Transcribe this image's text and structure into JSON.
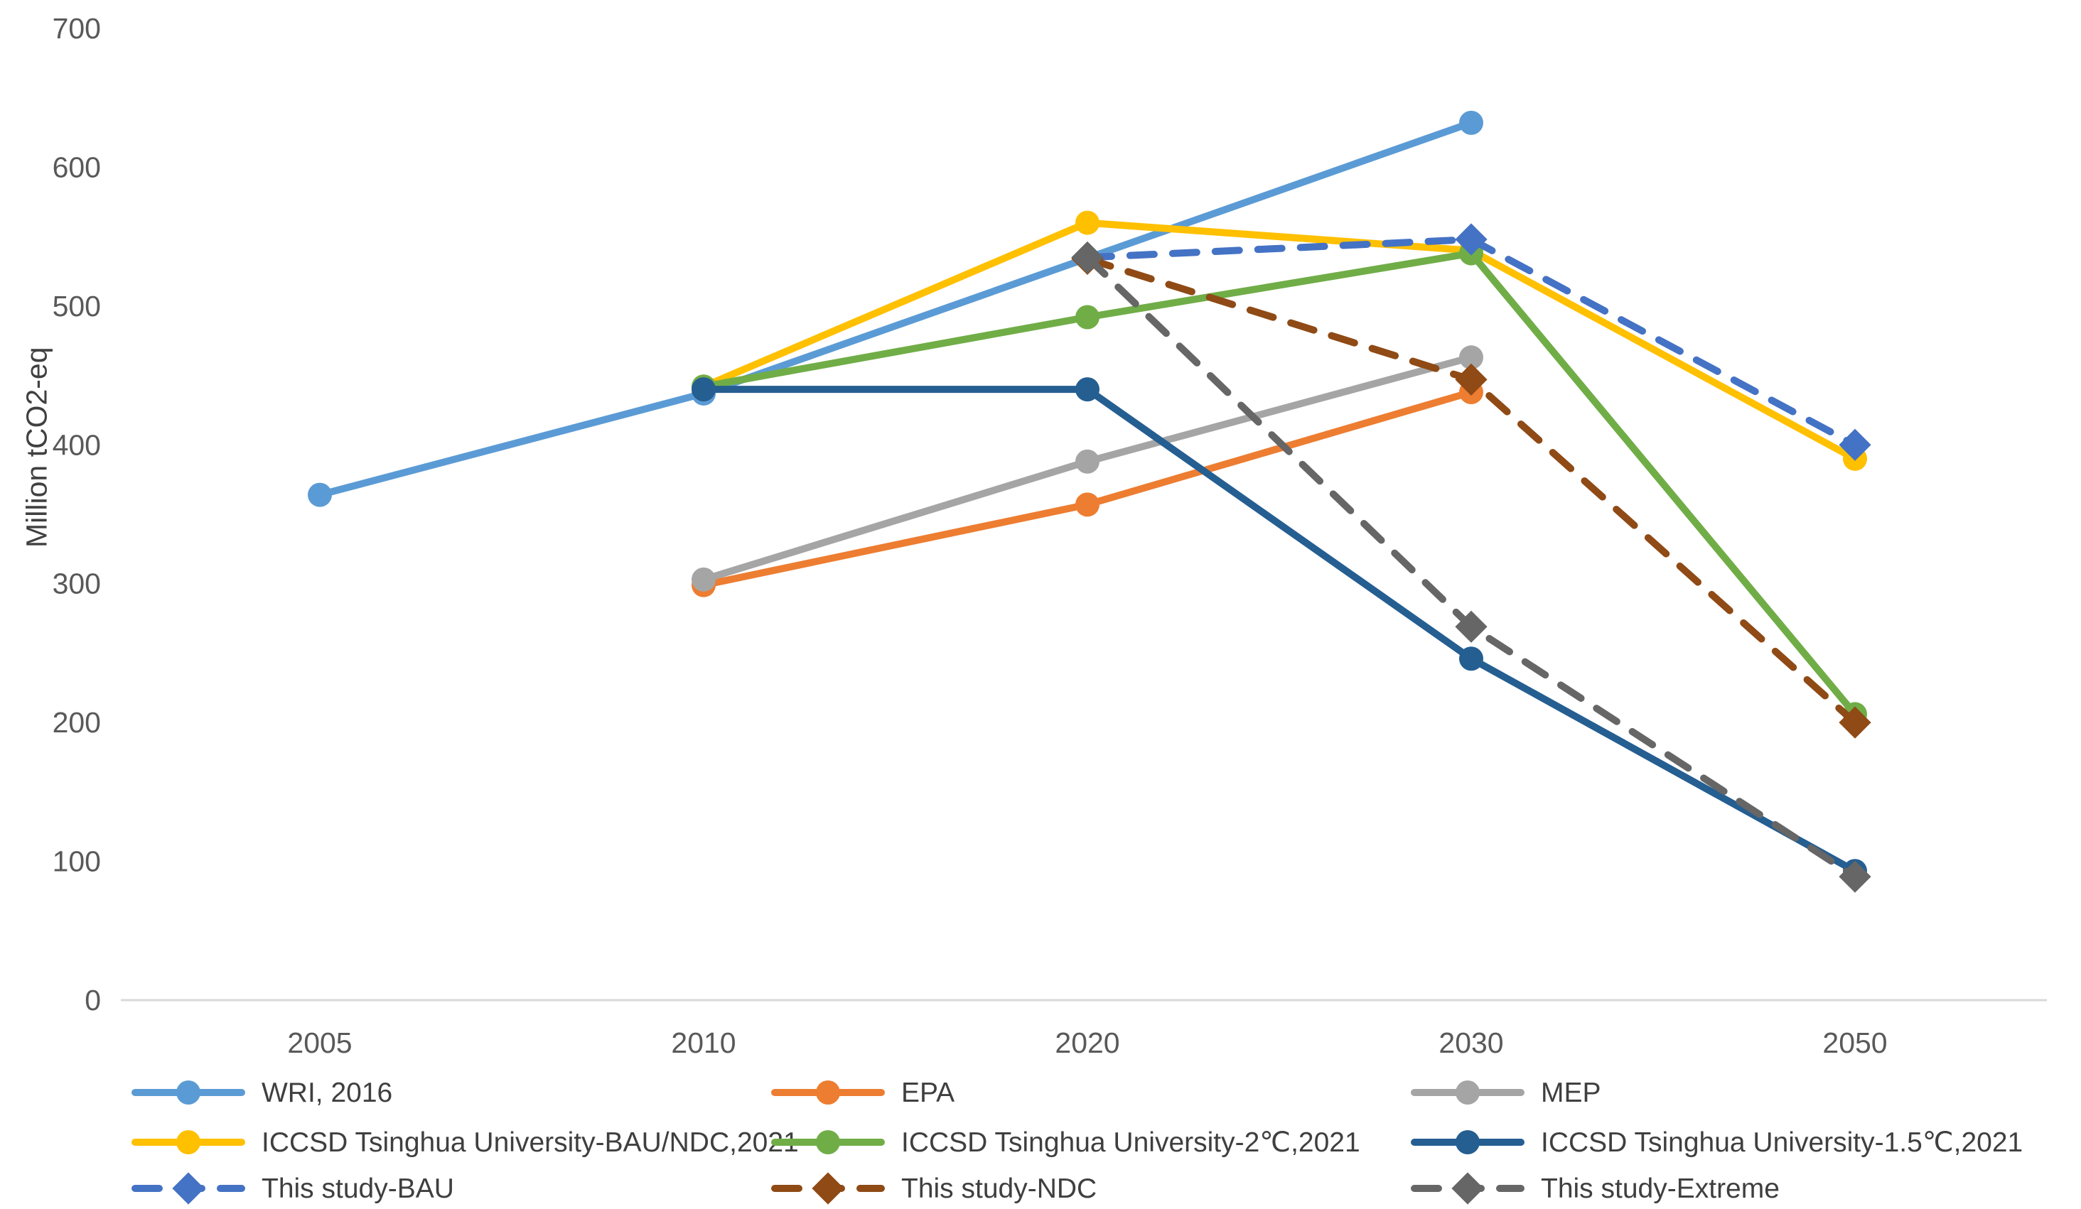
{
  "chart_data": {
    "type": "line",
    "title": "",
    "xlabel": "",
    "ylabel": "Million tCO2-eq",
    "categories": [
      "2005",
      "2010",
      "2020",
      "2030",
      "2050"
    ],
    "ylim": [
      0,
      700
    ],
    "yticks": [
      0,
      100,
      200,
      300,
      400,
      500,
      600,
      700
    ],
    "grid": false,
    "legend_position": "bottom",
    "legend_columns": 3,
    "axis_color": "#D9D9D9",
    "tick_label_color": "#595959",
    "legend_text_color": "#3F3F3F",
    "series": [
      {
        "name": "WRI, 2016",
        "color": "#5B9BD5",
        "style": "solid",
        "marker": "circle",
        "points": [
          {
            "x": "2005",
            "y": 364
          },
          {
            "x": "2010",
            "y": 437
          },
          {
            "x": "2030",
            "y": 632
          }
        ]
      },
      {
        "name": "EPA",
        "color": "#ED7D31",
        "style": "solid",
        "marker": "circle",
        "points": [
          {
            "x": "2010",
            "y": 299
          },
          {
            "x": "2020",
            "y": 357
          },
          {
            "x": "2030",
            "y": 438
          }
        ]
      },
      {
        "name": "MEP",
        "color": "#A5A5A5",
        "style": "solid",
        "marker": "circle",
        "points": [
          {
            "x": "2010",
            "y": 303
          },
          {
            "x": "2020",
            "y": 388
          },
          {
            "x": "2030",
            "y": 463
          }
        ]
      },
      {
        "name": "ICCSD Tsinghua University-BAU/NDC,2021",
        "color": "#FFC000",
        "style": "solid",
        "marker": "circle",
        "points": [
          {
            "x": "2010",
            "y": 442
          },
          {
            "x": "2020",
            "y": 560
          },
          {
            "x": "2030",
            "y": 540
          },
          {
            "x": "2050",
            "y": 390
          }
        ]
      },
      {
        "name": "ICCSD Tsinghua University-2℃,2021",
        "color": "#70AD47",
        "style": "solid",
        "marker": "circle",
        "points": [
          {
            "x": "2010",
            "y": 442
          },
          {
            "x": "2020",
            "y": 492
          },
          {
            "x": "2030",
            "y": 538
          },
          {
            "x": "2050",
            "y": 206
          }
        ]
      },
      {
        "name": "ICCSD Tsinghua University-1.5℃,2021",
        "color": "#255E91",
        "style": "solid",
        "marker": "circle",
        "points": [
          {
            "x": "2010",
            "y": 440
          },
          {
            "x": "2020",
            "y": 440
          },
          {
            "x": "2030",
            "y": 246
          },
          {
            "x": "2050",
            "y": 93
          }
        ]
      },
      {
        "name": "This study-BAU",
        "color": "#4472C4",
        "style": "dashed",
        "marker": "diamond",
        "points": [
          {
            "x": "2020",
            "y": 535
          },
          {
            "x": "2030",
            "y": 548
          },
          {
            "x": "2050",
            "y": 400
          }
        ]
      },
      {
        "name": "This study-NDC",
        "color": "#8F4A15",
        "style": "dashed",
        "marker": "diamond",
        "points": [
          {
            "x": "2020",
            "y": 534
          },
          {
            "x": "2030",
            "y": 447
          },
          {
            "x": "2050",
            "y": 200
          }
        ]
      },
      {
        "name": "This study-Extreme",
        "color": "#666666",
        "style": "dashed",
        "marker": "diamond",
        "points": [
          {
            "x": "2020",
            "y": 535
          },
          {
            "x": "2030",
            "y": 269
          },
          {
            "x": "2050",
            "y": 89
          }
        ]
      }
    ]
  }
}
